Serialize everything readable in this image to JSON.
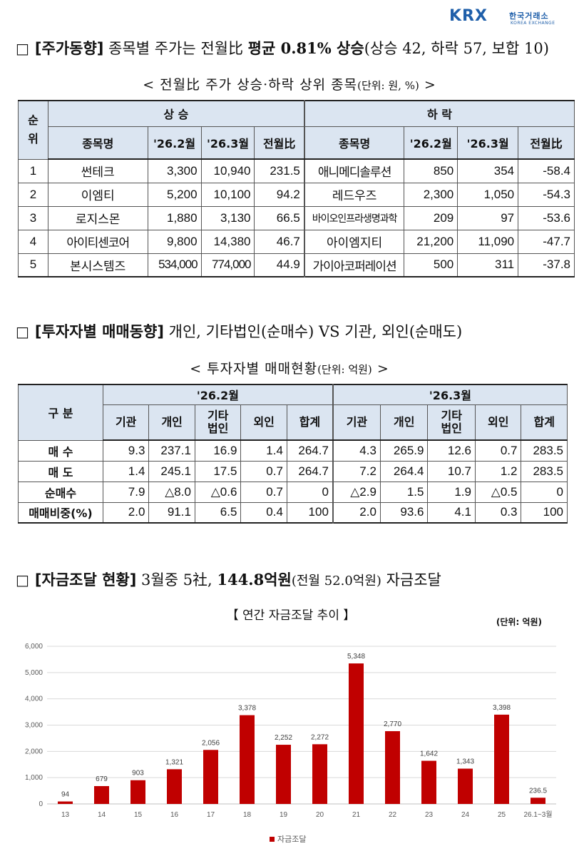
{
  "logo": {
    "brand": "KRX",
    "korean": "한국거래소",
    "english": "KOREA EXCHANGE"
  },
  "section1": {
    "bullet": "□",
    "keyword": "[주가동향]",
    "text1": "종목별 주가는 전월比 ",
    "bold": "평균 0.81% 상승",
    "text2": "(상승 42, 하락 57, 보합 10)"
  },
  "table1": {
    "caption": "< 전월比 주가 상승·하락 상위 종목",
    "caption_unit": "(단위: 원, %)",
    "caption_end": " >",
    "rank_header": "순\n위",
    "rise_header": "상 승",
    "fall_header": "하 락",
    "columns": [
      "종목명",
      "'26.2월",
      "'26.3월",
      "전월比"
    ],
    "rows": [
      {
        "rank": "1",
        "rise": [
          "썬테크",
          "3,300",
          "10,940",
          "231.5"
        ],
        "fall": [
          "애니메디솔루션",
          "850",
          "354",
          "-58.4"
        ]
      },
      {
        "rank": "2",
        "rise": [
          "이엠티",
          "5,200",
          "10,100",
          "94.2"
        ],
        "fall": [
          "레드우즈",
          "2,300",
          "1,050",
          "-54.3"
        ]
      },
      {
        "rank": "3",
        "rise": [
          "로지스몬",
          "1,880",
          "3,130",
          "66.5"
        ],
        "fall": [
          "바이오인프라생명과학",
          "209",
          "97",
          "-53.6"
        ]
      },
      {
        "rank": "4",
        "rise": [
          "아이티센코어",
          "9,800",
          "14,380",
          "46.7"
        ],
        "fall": [
          "아이엠지티",
          "21,200",
          "11,090",
          "-47.7"
        ]
      },
      {
        "rank": "5",
        "rise": [
          "본시스템즈",
          "534,000",
          "774,000",
          "44.9"
        ],
        "fall": [
          "가이아코퍼레이션",
          "500",
          "311",
          "-37.8"
        ]
      }
    ]
  },
  "section2": {
    "bullet": "□",
    "keyword": "[투자자별 매매동향]",
    "text": "개인, 기타법인(순매수) VS 기관, 외인(순매도)"
  },
  "table2": {
    "caption": "< 투자자별 매매현황",
    "caption_unit": "(단위: 억원)",
    "caption_end": " >",
    "corner": "구 분",
    "period1": "'26.2월",
    "period2": "'26.3월",
    "columns": [
      "기관",
      "개인",
      "기타\n법인",
      "외인",
      "합계"
    ],
    "rows": [
      {
        "label": "매 수",
        "p1": [
          "9.3",
          "237.1",
          "16.9",
          "1.4",
          "264.7"
        ],
        "p2": [
          "4.3",
          "265.9",
          "12.6",
          "0.7",
          "283.5"
        ]
      },
      {
        "label": "매 도",
        "p1": [
          "1.4",
          "245.1",
          "17.5",
          "0.7",
          "264.7"
        ],
        "p2": [
          "7.2",
          "264.4",
          "10.7",
          "1.2",
          "283.5"
        ]
      },
      {
        "label": "순매수",
        "p1": [
          "7.9",
          "△8.0",
          "△0.6",
          "0.7",
          "0"
        ],
        "p2": [
          "△2.9",
          "1.5",
          "1.9",
          "△0.5",
          "0"
        ]
      },
      {
        "label": "매매비중(%)",
        "p1": [
          "2.0",
          "91.1",
          "6.5",
          "0.4",
          "100"
        ],
        "p2": [
          "2.0",
          "93.6",
          "4.1",
          "0.3",
          "100"
        ]
      }
    ]
  },
  "section3": {
    "bullet": "□",
    "keyword": "[자금조달 현황]",
    "text1": " 3월중 5社, ",
    "bold": "144.8억원",
    "small": "(전월 52.0억원)",
    "text2": " 자금조달"
  },
  "chart_data": {
    "type": "bar",
    "title": "【 연간 자금조달 추이 】",
    "unit": "(단위: 억원)",
    "categories": [
      "13",
      "14",
      "15",
      "16",
      "17",
      "18",
      "19",
      "20",
      "21",
      "22",
      "23",
      "24",
      "25",
      "26.1~3월"
    ],
    "series": [
      {
        "name": "자금조달",
        "values": [
          94,
          679,
          903,
          1321,
          2056,
          3378,
          2252,
          2272,
          5348,
          2770,
          1642,
          1343,
          3398,
          236.5
        ],
        "labels": [
          "94",
          "679",
          "903",
          "1,321",
          "2,056",
          "3,378",
          "2,252",
          "2,272",
          "5,348",
          "2,770",
          "1,642",
          "1,343",
          "3,398",
          "236.5"
        ],
        "color": "#c00000"
      }
    ],
    "ylim": [
      0,
      6000
    ],
    "yticks": [
      "0",
      "1,000",
      "2,000",
      "3,000",
      "4,000",
      "5,000",
      "6,000"
    ],
    "grid": true,
    "legend": "bottom"
  }
}
